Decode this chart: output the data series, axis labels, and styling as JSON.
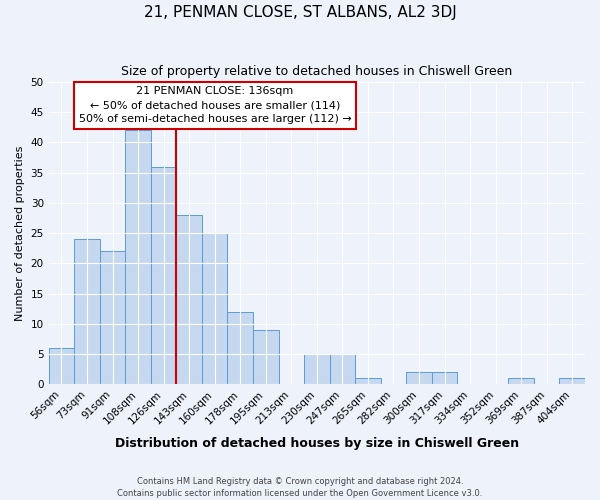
{
  "title": "21, PENMAN CLOSE, ST ALBANS, AL2 3DJ",
  "subtitle": "Size of property relative to detached houses in Chiswell Green",
  "xlabel": "Distribution of detached houses by size in Chiswell Green",
  "ylabel": "Number of detached properties",
  "bin_labels": [
    "56sqm",
    "73sqm",
    "91sqm",
    "108sqm",
    "126sqm",
    "143sqm",
    "160sqm",
    "178sqm",
    "195sqm",
    "213sqm",
    "230sqm",
    "247sqm",
    "265sqm",
    "282sqm",
    "300sqm",
    "317sqm",
    "334sqm",
    "352sqm",
    "369sqm",
    "387sqm",
    "404sqm"
  ],
  "bar_heights": [
    6,
    24,
    22,
    42,
    36,
    28,
    25,
    12,
    9,
    0,
    5,
    5,
    1,
    0,
    2,
    2,
    0,
    0,
    1,
    0,
    1
  ],
  "bar_color": "#c5d8f0",
  "bar_edge_color": "#5b9bd5",
  "vline_index": 4.5,
  "vline_color": "#cc0000",
  "ylim_max": 50,
  "yticks": [
    0,
    5,
    10,
    15,
    20,
    25,
    30,
    35,
    40,
    45,
    50
  ],
  "annotation_title": "21 PENMAN CLOSE: 136sqm",
  "annotation_line1": "← 50% of detached houses are smaller (114)",
  "annotation_line2": "50% of semi-detached houses are larger (112) →",
  "annotation_box_facecolor": "#ffffff",
  "annotation_box_edgecolor": "#cc0000",
  "footer_line1": "Contains HM Land Registry data © Crown copyright and database right 2024.",
  "footer_line2": "Contains public sector information licensed under the Open Government Licence v3.0.",
  "bg_color": "#edf2fb",
  "grid_color": "#ffffff",
  "title_fontsize": 11,
  "subtitle_fontsize": 9,
  "xlabel_fontsize": 9,
  "ylabel_fontsize": 8,
  "tick_fontsize": 7.5,
  "annot_fontsize": 8
}
